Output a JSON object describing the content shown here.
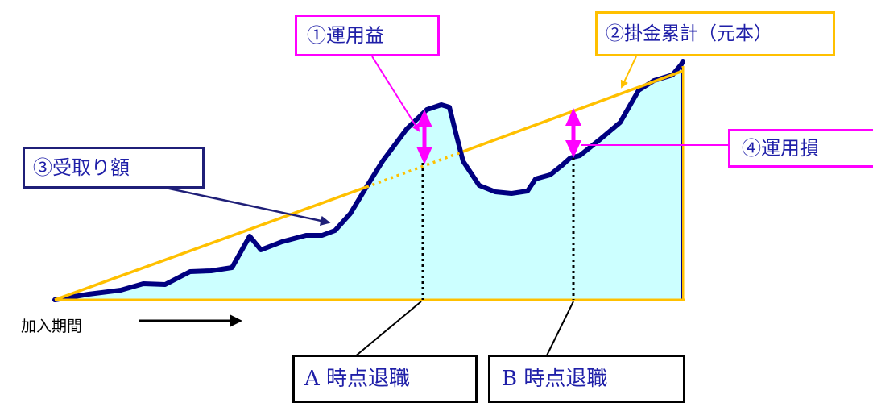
{
  "labels": {
    "investment_gain": "①運用益",
    "contributions_cumulative": "②掛金累計（元本）",
    "received_amount": "③受取り額",
    "investment_loss": "④運用損",
    "retire_at_a": "A 時点退職",
    "retire_at_b": "B 時点退職",
    "enrollment_period": "加入期間"
  },
  "colors": {
    "fill": "#ccffff",
    "curve": "#000080",
    "principal_line": "#ffc000",
    "gain_loss_arrows": "#ff00ff",
    "label_text": "#1f1fa8",
    "axis_arrow": "#000000"
  }
}
